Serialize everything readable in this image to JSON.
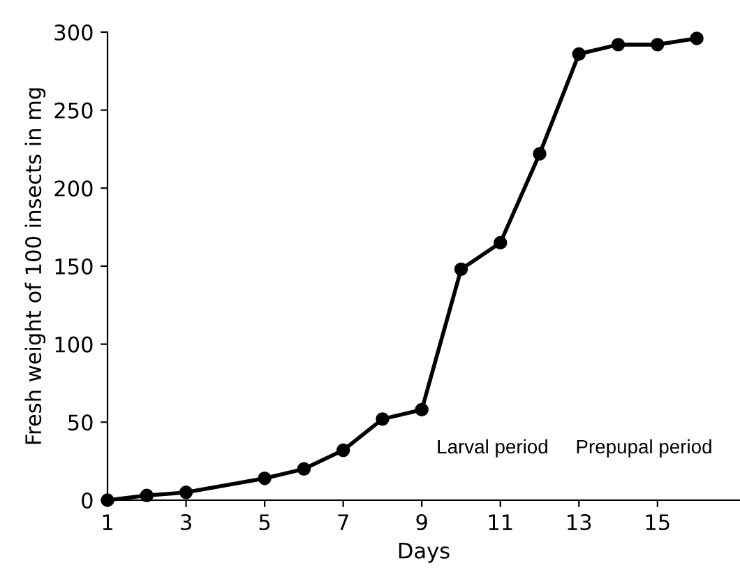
{
  "chart_data": {
    "type": "line",
    "xlabel": "Days",
    "ylabel": "Fresh weight of 100 insects in mg",
    "x": [
      1,
      2,
      3,
      5,
      6,
      7,
      8,
      9,
      10,
      11,
      12,
      13,
      14,
      15,
      16
    ],
    "series": [
      {
        "color": "#000000",
        "values": [
          0,
          3,
          5,
          14,
          20,
          32,
          52,
          58,
          148,
          165,
          222,
          286,
          292,
          292,
          296
        ]
      }
    ],
    "xlim": [
      1,
      17.1
    ],
    "xticks": [
      1,
      3,
      5,
      7,
      9,
      11,
      13,
      15
    ],
    "ylim": [
      0,
      300
    ],
    "yticks": [
      0,
      50,
      100,
      150,
      200,
      250,
      300
    ],
    "marker": "circle",
    "line_style": "solid",
    "grid": false,
    "legend": false,
    "annotations": [
      "Larval period",
      "Prepupal period"
    ]
  }
}
